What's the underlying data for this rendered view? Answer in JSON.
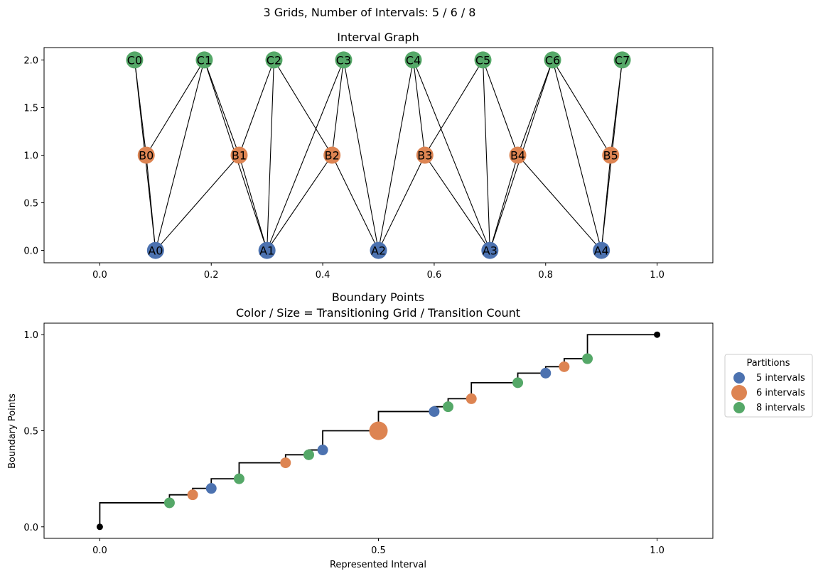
{
  "suptitle": "3 Grids, Number of Intervals: 5 / 6 / 8",
  "colors": {
    "A": "#4c72b0",
    "B": "#dd8452",
    "C": "#55a868",
    "endpoint": "#000000"
  },
  "chart_data": [
    {
      "type": "network",
      "title": "Interval Graph",
      "xticks": [
        "0.0",
        "0.2",
        "0.4",
        "0.6",
        "0.8",
        "1.0"
      ],
      "yticks": [
        "0.0",
        "0.5",
        "1.0",
        "1.5",
        "2.0"
      ],
      "xlim": [
        -0.1,
        1.1
      ],
      "ylim": [
        -0.13,
        2.13
      ],
      "nodes": [
        {
          "id": "A0",
          "x": 0.1,
          "y": 0,
          "grid": "A"
        },
        {
          "id": "A1",
          "x": 0.3,
          "y": 0,
          "grid": "A"
        },
        {
          "id": "A2",
          "x": 0.5,
          "y": 0,
          "grid": "A"
        },
        {
          "id": "A3",
          "x": 0.7,
          "y": 0,
          "grid": "A"
        },
        {
          "id": "A4",
          "x": 0.9,
          "y": 0,
          "grid": "A"
        },
        {
          "id": "B0",
          "x": 0.0833,
          "y": 1,
          "grid": "B"
        },
        {
          "id": "B1",
          "x": 0.25,
          "y": 1,
          "grid": "B"
        },
        {
          "id": "B2",
          "x": 0.4167,
          "y": 1,
          "grid": "B"
        },
        {
          "id": "B3",
          "x": 0.5833,
          "y": 1,
          "grid": "B"
        },
        {
          "id": "B4",
          "x": 0.75,
          "y": 1,
          "grid": "B"
        },
        {
          "id": "B5",
          "x": 0.9167,
          "y": 1,
          "grid": "B"
        },
        {
          "id": "C0",
          "x": 0.0625,
          "y": 2,
          "grid": "C"
        },
        {
          "id": "C1",
          "x": 0.1875,
          "y": 2,
          "grid": "C"
        },
        {
          "id": "C2",
          "x": 0.3125,
          "y": 2,
          "grid": "C"
        },
        {
          "id": "C3",
          "x": 0.4375,
          "y": 2,
          "grid": "C"
        },
        {
          "id": "C4",
          "x": 0.5625,
          "y": 2,
          "grid": "C"
        },
        {
          "id": "C5",
          "x": 0.6875,
          "y": 2,
          "grid": "C"
        },
        {
          "id": "C6",
          "x": 0.8125,
          "y": 2,
          "grid": "C"
        },
        {
          "id": "C7",
          "x": 0.9375,
          "y": 2,
          "grid": "C"
        }
      ],
      "edges": [
        [
          "A0",
          "B0"
        ],
        [
          "A0",
          "B1"
        ],
        [
          "A0",
          "C0"
        ],
        [
          "A0",
          "C1"
        ],
        [
          "A1",
          "B1"
        ],
        [
          "A1",
          "B2"
        ],
        [
          "A1",
          "C1"
        ],
        [
          "A1",
          "C2"
        ],
        [
          "A1",
          "C3"
        ],
        [
          "A2",
          "B2"
        ],
        [
          "A2",
          "B3"
        ],
        [
          "A2",
          "C3"
        ],
        [
          "A2",
          "C4"
        ],
        [
          "A3",
          "B3"
        ],
        [
          "A3",
          "B4"
        ],
        [
          "A3",
          "C4"
        ],
        [
          "A3",
          "C5"
        ],
        [
          "A3",
          "C6"
        ],
        [
          "A4",
          "B4"
        ],
        [
          "A4",
          "B5"
        ],
        [
          "A4",
          "C6"
        ],
        [
          "A4",
          "C7"
        ],
        [
          "B0",
          "C0"
        ],
        [
          "B0",
          "C1"
        ],
        [
          "B1",
          "C1"
        ],
        [
          "B1",
          "C2"
        ],
        [
          "B2",
          "C2"
        ],
        [
          "B2",
          "C3"
        ],
        [
          "B3",
          "C4"
        ],
        [
          "B3",
          "C5"
        ],
        [
          "B4",
          "C5"
        ],
        [
          "B4",
          "C6"
        ],
        [
          "B5",
          "C6"
        ],
        [
          "B5",
          "C7"
        ]
      ]
    },
    {
      "type": "scatter",
      "title": "Boundary Points",
      "subtitle": "Color / Size = Transitioning Grid / Transition Count",
      "xlabel": "Represented Interval",
      "ylabel": "Boundary Points",
      "xticks": [
        "0.0",
        "0.5",
        "1.0"
      ],
      "yticks": [
        "0.0",
        "0.5",
        "1.0"
      ],
      "xlim": [
        -0.1,
        1.1
      ],
      "ylim": [
        -0.06,
        1.06
      ],
      "endpoints": [
        [
          0,
          0
        ],
        [
          1,
          1
        ]
      ],
      "step_x": [
        0,
        0.125,
        0.1667,
        0.2,
        0.25,
        0.3333,
        0.375,
        0.4,
        0.5,
        0.6,
        0.625,
        0.6667,
        0.75,
        0.8,
        0.8333,
        0.875,
        1
      ],
      "step_y": [
        0,
        0.125,
        0.1667,
        0.2,
        0.25,
        0.3333,
        0.375,
        0.4,
        0.5,
        0.6,
        0.625,
        0.6667,
        0.75,
        0.8,
        0.8333,
        0.875,
        1
      ],
      "points": [
        {
          "x": 0.125,
          "y": 0.125,
          "grid": "C",
          "count": 1
        },
        {
          "x": 0.1667,
          "y": 0.1667,
          "grid": "B",
          "count": 1
        },
        {
          "x": 0.2,
          "y": 0.2,
          "grid": "A",
          "count": 1
        },
        {
          "x": 0.25,
          "y": 0.25,
          "grid": "C",
          "count": 1
        },
        {
          "x": 0.3333,
          "y": 0.3333,
          "grid": "B",
          "count": 1
        },
        {
          "x": 0.375,
          "y": 0.375,
          "grid": "C",
          "count": 1
        },
        {
          "x": 0.4,
          "y": 0.4,
          "grid": "A",
          "count": 1
        },
        {
          "x": 0.5,
          "y": 0.5,
          "grid": "B",
          "count": 3
        },
        {
          "x": 0.6,
          "y": 0.6,
          "grid": "A",
          "count": 1
        },
        {
          "x": 0.625,
          "y": 0.625,
          "grid": "C",
          "count": 1
        },
        {
          "x": 0.6667,
          "y": 0.6667,
          "grid": "B",
          "count": 1
        },
        {
          "x": 0.75,
          "y": 0.75,
          "grid": "C",
          "count": 1
        },
        {
          "x": 0.8,
          "y": 0.8,
          "grid": "A",
          "count": 1
        },
        {
          "x": 0.8333,
          "y": 0.8333,
          "grid": "B",
          "count": 1
        },
        {
          "x": 0.875,
          "y": 0.875,
          "grid": "C",
          "count": 1
        }
      ],
      "legend": {
        "title": "Partitions",
        "placement": "outside-right",
        "entries": [
          {
            "label": "5 intervals",
            "grid": "A"
          },
          {
            "label": "6 intervals",
            "grid": "B"
          },
          {
            "label": "8 intervals",
            "grid": "C"
          }
        ]
      }
    }
  ]
}
